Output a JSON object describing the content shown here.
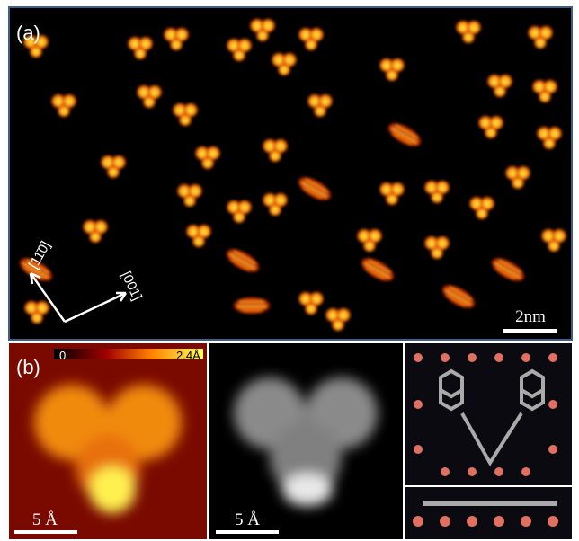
{
  "panel_a": {
    "label": "(a)",
    "scale_bar": "2nm",
    "directions": [
      "[11̄0]",
      "[001]"
    ]
  },
  "panel_b": {
    "label": "(b)",
    "colorbar_min": "0",
    "colorbar_max": "2.4Å",
    "scale_bars": [
      "5 Å",
      "5 Å"
    ]
  }
}
